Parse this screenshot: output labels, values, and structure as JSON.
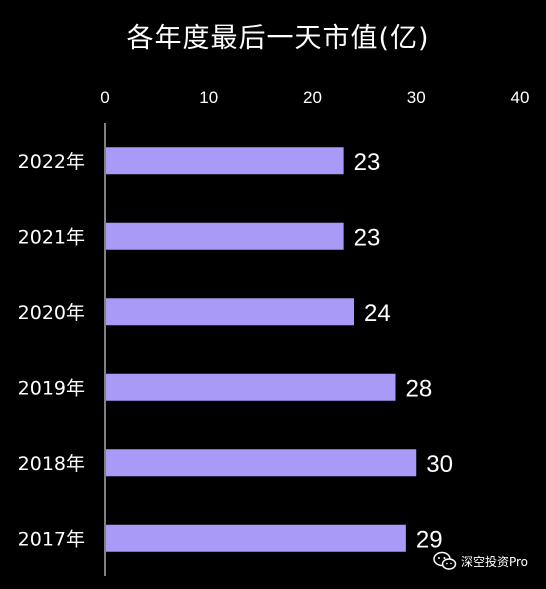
{
  "chart_data": {
    "type": "bar",
    "orientation": "horizontal",
    "title": "各年度最后一天市值(亿)",
    "categories": [
      "2022年",
      "2021年",
      "2020年",
      "2019年",
      "2018年",
      "2017年"
    ],
    "values": [
      23,
      23,
      24,
      28,
      30,
      29
    ],
    "xlim": [
      0,
      40
    ],
    "xticks": [
      0,
      10,
      20,
      30,
      40
    ],
    "xaxis_position": "top",
    "grid": false,
    "legend": "none",
    "bar_color": "#a99af8",
    "background_color": "#000000"
  },
  "watermark": {
    "icon": "wechat-icon",
    "text": "深空投资Pro"
  }
}
